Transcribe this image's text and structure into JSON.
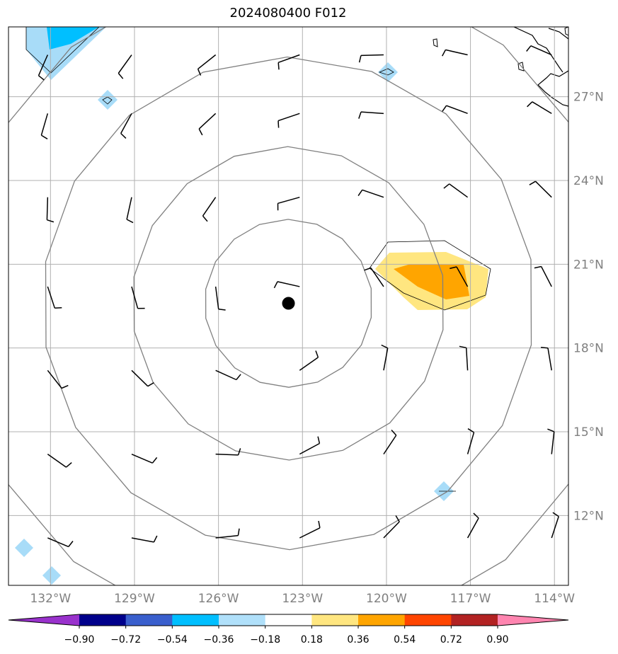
{
  "title": "2024080400 F012",
  "map": {
    "lon_range": [
      -133.5,
      -113.5
    ],
    "lat_range": [
      9.5,
      29.5
    ],
    "lat_ticks": [
      {
        "value": 27,
        "label": "27°N"
      },
      {
        "value": 24,
        "label": "24°N"
      },
      {
        "value": 21,
        "label": "21°N"
      },
      {
        "value": 18,
        "label": "18°N"
      },
      {
        "value": 15,
        "label": "15°N"
      },
      {
        "value": 12,
        "label": "12°N"
      }
    ],
    "lon_ticks": [
      {
        "value": -132,
        "label": "132°W"
      },
      {
        "value": -129,
        "label": "129°W"
      },
      {
        "value": -126,
        "label": "126°W"
      },
      {
        "value": -123,
        "label": "123°W"
      },
      {
        "value": -120,
        "label": "120°W"
      },
      {
        "value": -117,
        "label": "117°W"
      },
      {
        "value": -114,
        "label": "114°W"
      }
    ],
    "center": {
      "lon": -123.5,
      "lat": 19.6
    },
    "ring_radii_deg": [
      3.0,
      5.6,
      8.8,
      12.0
    ],
    "colors": {
      "grid": "#b0b0b0",
      "rings": "#808080",
      "positive_light": "#ffe680",
      "positive_strong": "#ffa500",
      "negative_light": "#a8dcf8",
      "negative_strong": "#00bfff"
    }
  },
  "colorbar": {
    "colors": [
      "#9932cc",
      "#00008b",
      "#3a5fcd",
      "#00bfff",
      "#b0e0fa",
      "#ffffff",
      "#ffe680",
      "#ffa500",
      "#ff4500",
      "#b22222",
      "#ff85b0"
    ],
    "tick_labels": [
      "−0.90",
      "−0.72",
      "−0.54",
      "−0.36",
      "−0.18",
      "0.18",
      "0.36",
      "0.54",
      "0.72",
      "0.90"
    ]
  }
}
